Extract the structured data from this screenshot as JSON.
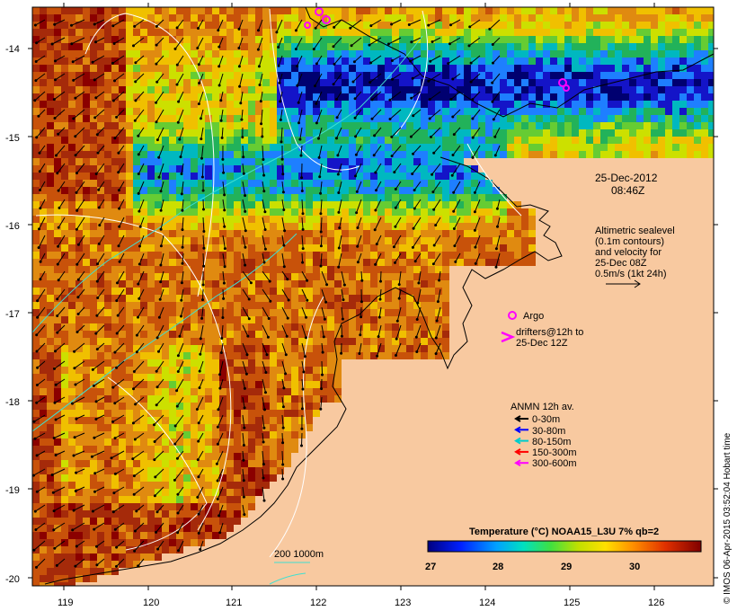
{
  "map": {
    "land_color": "#F8C9A0",
    "sst_colors": [
      "#8B0000",
      "#A52A0A",
      "#C8520A",
      "#E08A10",
      "#F0C000",
      "#CCE000",
      "#66CC33",
      "#22B25A",
      "#00B8C0",
      "#1E7FFF",
      "#1414C8",
      "#000070"
    ]
  },
  "axes": {
    "lon_ticks": [
      "119",
      "120",
      "121",
      "122",
      "123",
      "124",
      "125",
      "126"
    ],
    "lat_ticks": [
      "-14",
      "-15",
      "-16",
      "-17",
      "-18",
      "-19",
      "-20"
    ]
  },
  "annotations": {
    "date": "25-Dec-2012",
    "time": "08:46Z",
    "altimetry_lines": [
      "Altimetric sealevel",
      "(0.1m contours)",
      "and velocity for",
      "25-Dec 08Z",
      "0.5m/s (1kt 24h)"
    ],
    "argo_label": "Argo",
    "drifters_line1": "drifters@12h to",
    "drifters_line2": "25-Dec 12Z",
    "anmn_title": "ANMN 12h av.",
    "anmn_items": [
      {
        "label": "0-30m",
        "color": "#000000"
      },
      {
        "label": "30-80m",
        "color": "#0000FF"
      },
      {
        "label": "80-150m",
        "color": "#00CCCC"
      },
      {
        "label": "150-300m",
        "color": "#FF0000"
      },
      {
        "label": "300-600m",
        "color": "#FF00FF"
      }
    ],
    "isobath_label": "200  1000m"
  },
  "colorbar": {
    "title": "Temperature (°C) NOAA15_L3U 7% qb=2",
    "ticks": [
      "27",
      "28",
      "29",
      "30"
    ]
  },
  "credit": "© IMOS 06-Apr-2015 03:52:04 Hobart time"
}
